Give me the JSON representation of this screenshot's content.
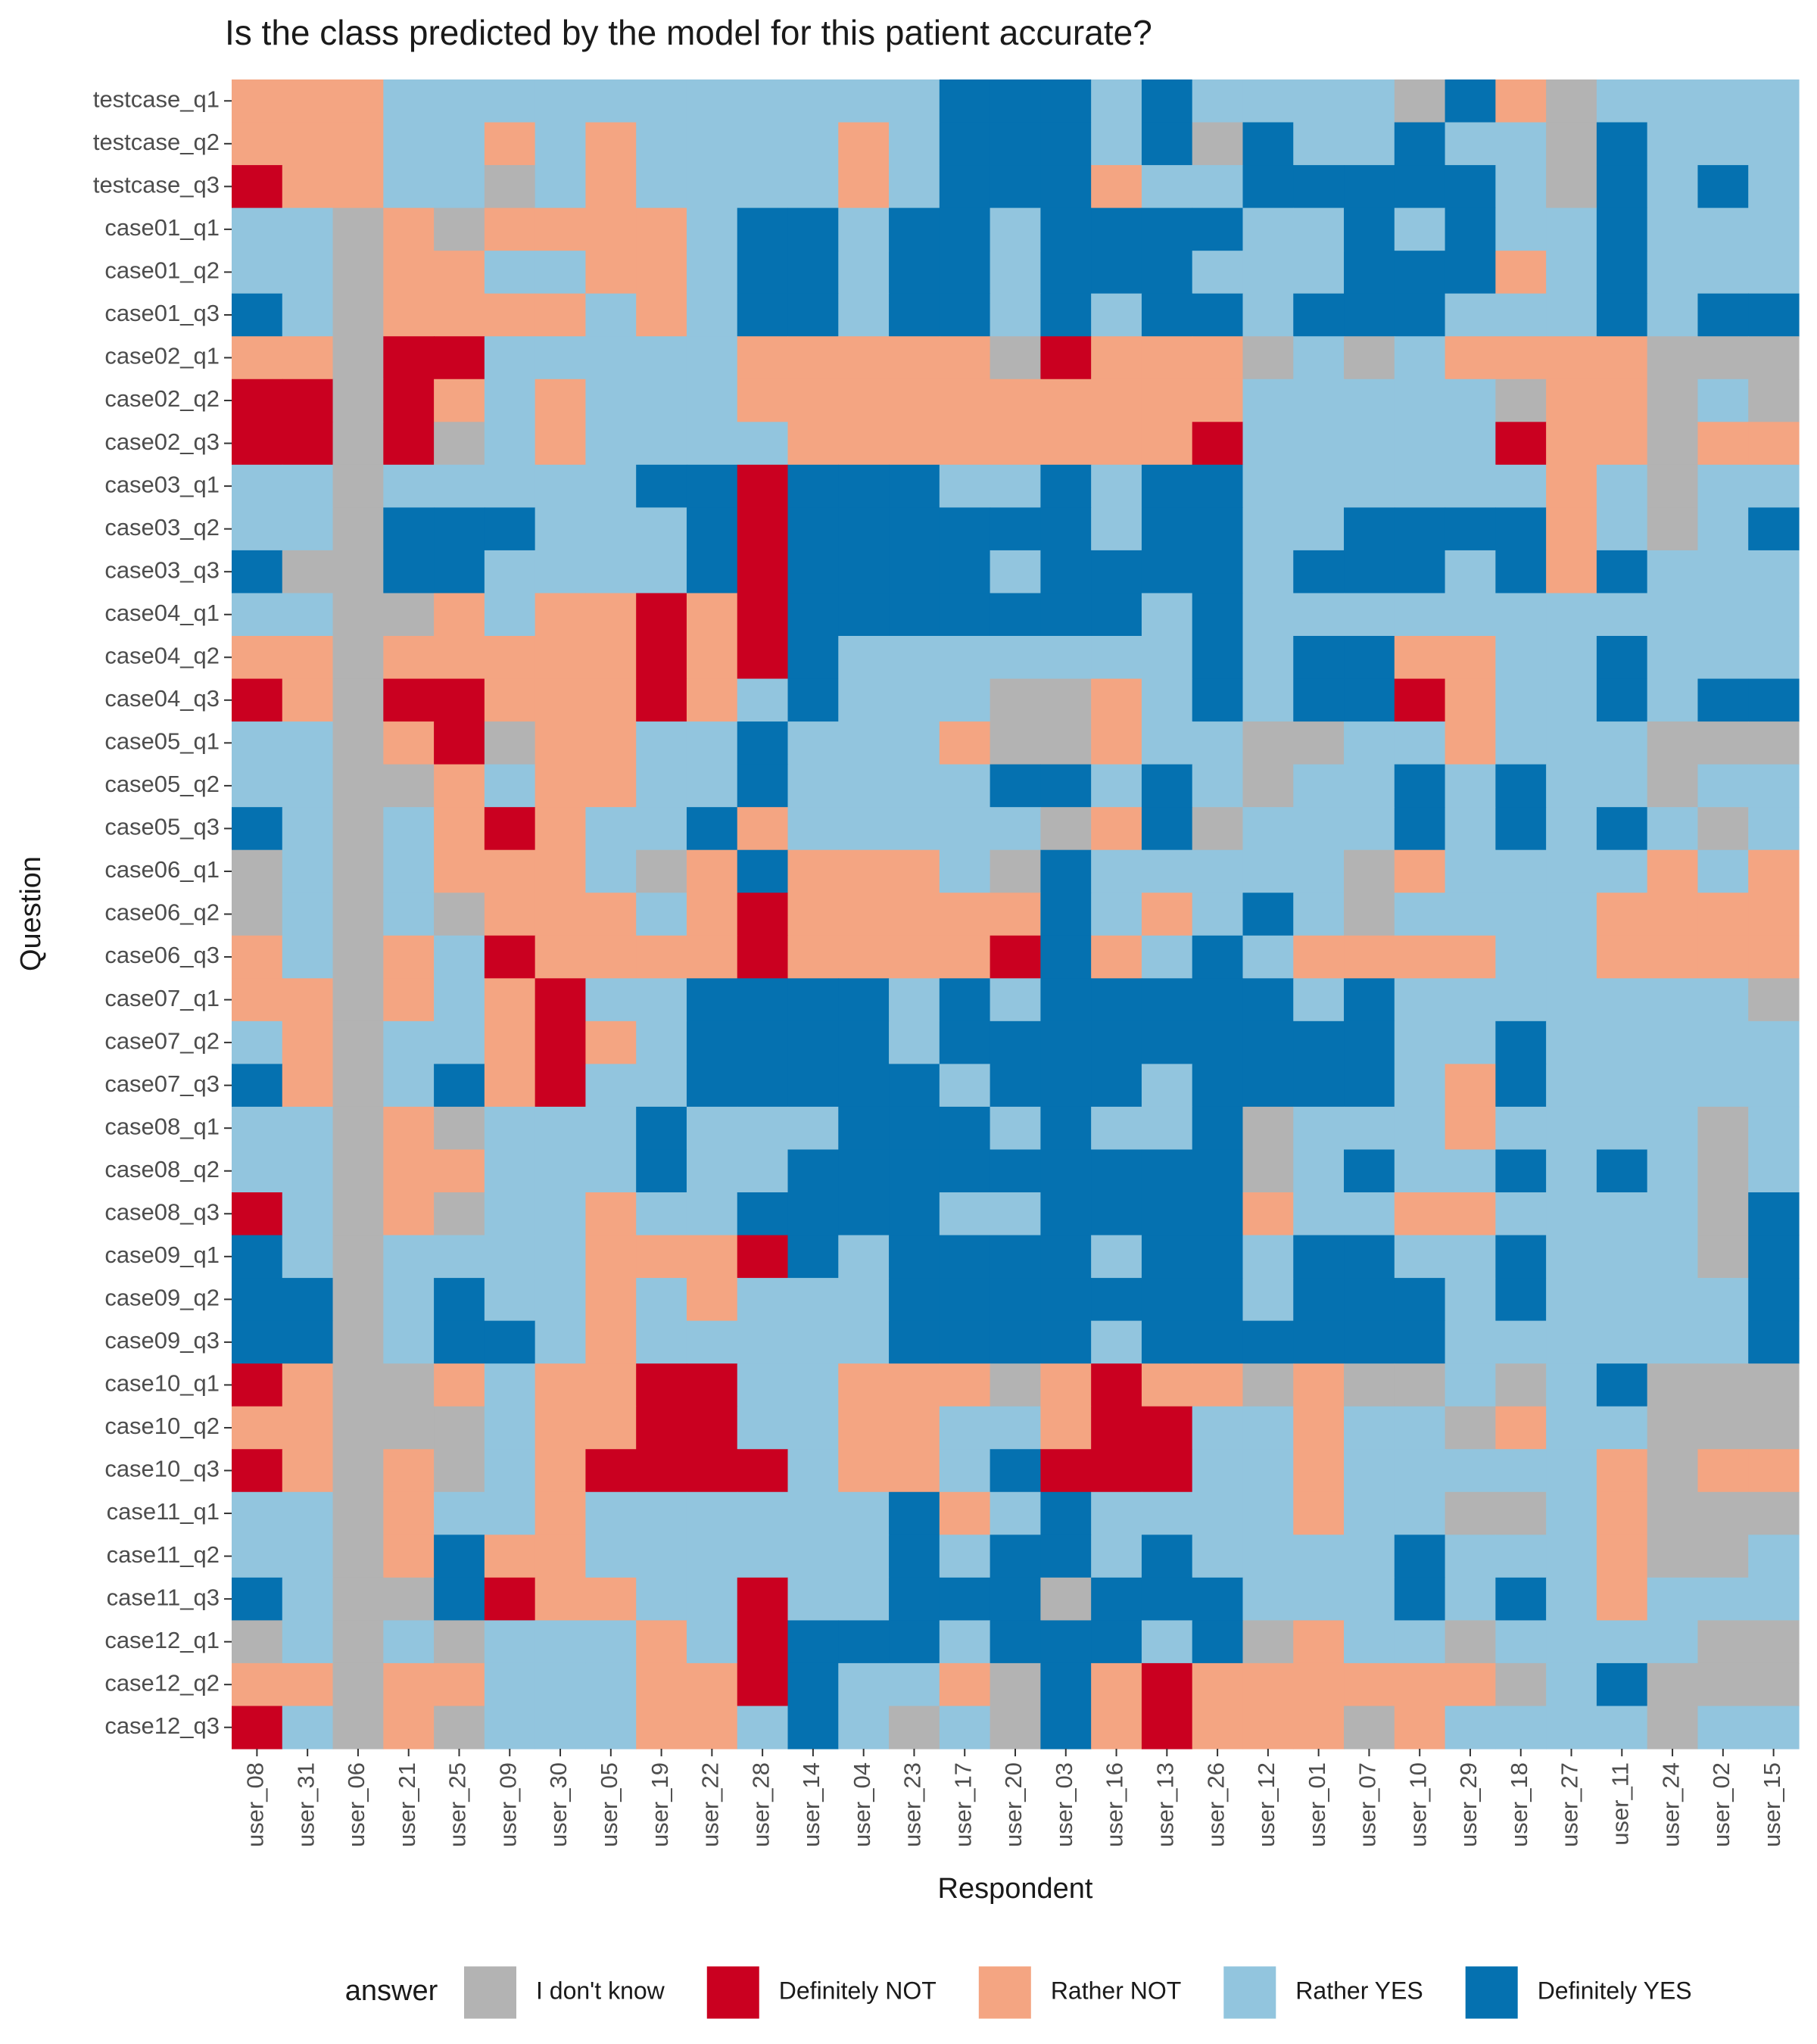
{
  "chart_data": {
    "type": "heatmap",
    "title": "Is the class predicted by the model for this patient accurate?",
    "xlabel": "Respondent",
    "ylabel": "Question",
    "legend_title": "answer",
    "legend_position": "bottom",
    "categories": [
      "I don't know",
      "Definitely NOT",
      "Rather NOT",
      "Rather YES",
      "Definitely YES"
    ],
    "colors": [
      "#b3b3b3",
      "#ca0020",
      "#f4a582",
      "#92c5de",
      "#0571b0"
    ],
    "x": [
      "user_08",
      "user_31",
      "user_06",
      "user_21",
      "user_25",
      "user_09",
      "user_30",
      "user_05",
      "user_19",
      "user_22",
      "user_28",
      "user_14",
      "user_04",
      "user_23",
      "user_17",
      "user_20",
      "user_03",
      "user_16",
      "user_13",
      "user_26",
      "user_12",
      "user_01",
      "user_07",
      "user_10",
      "user_29",
      "user_18",
      "user_27",
      "user_11",
      "user_24",
      "user_02",
      "user_15"
    ],
    "y": [
      "testcase_q1",
      "testcase_q2",
      "testcase_q3",
      "case01_q1",
      "case01_q2",
      "case01_q3",
      "case02_q1",
      "case02_q2",
      "case02_q3",
      "case03_q1",
      "case03_q2",
      "case03_q3",
      "case04_q1",
      "case04_q2",
      "case04_q3",
      "case05_q1",
      "case05_q2",
      "case05_q3",
      "case06_q1",
      "case06_q2",
      "case06_q3",
      "case07_q1",
      "case07_q2",
      "case07_q3",
      "case08_q1",
      "case08_q2",
      "case08_q3",
      "case09_q1",
      "case09_q2",
      "case09_q3",
      "case10_q1",
      "case10_q2",
      "case10_q3",
      "case11_q1",
      "case11_q2",
      "case11_q3",
      "case12_q1",
      "case12_q2",
      "case12_q3"
    ],
    "z": [
      [
        2,
        2,
        2,
        3,
        3,
        3,
        3,
        3,
        3,
        3,
        3,
        3,
        3,
        3,
        4,
        4,
        4,
        3,
        4,
        3,
        3,
        3,
        3,
        0,
        4,
        2,
        0,
        3,
        3,
        3,
        3
      ],
      [
        2,
        2,
        2,
        3,
        3,
        2,
        3,
        2,
        3,
        3,
        3,
        3,
        2,
        3,
        4,
        4,
        4,
        3,
        4,
        0,
        4,
        3,
        3,
        4,
        3,
        3,
        0,
        4,
        3,
        3,
        3
      ],
      [
        1,
        2,
        2,
        3,
        3,
        0,
        3,
        2,
        3,
        3,
        3,
        3,
        2,
        3,
        4,
        4,
        4,
        2,
        3,
        3,
        4,
        4,
        4,
        4,
        4,
        3,
        0,
        4,
        3,
        4,
        3
      ],
      [
        3,
        3,
        0,
        2,
        0,
        2,
        2,
        2,
        2,
        3,
        4,
        4,
        3,
        4,
        4,
        3,
        4,
        4,
        4,
        4,
        3,
        3,
        4,
        3,
        4,
        3,
        3,
        4,
        3,
        3,
        3
      ],
      [
        3,
        3,
        0,
        2,
        2,
        3,
        3,
        2,
        2,
        3,
        4,
        4,
        3,
        4,
        4,
        3,
        4,
        4,
        4,
        3,
        3,
        3,
        4,
        4,
        4,
        2,
        3,
        4,
        3,
        3,
        3
      ],
      [
        4,
        3,
        0,
        2,
        2,
        2,
        2,
        3,
        2,
        3,
        4,
        4,
        3,
        4,
        4,
        3,
        4,
        3,
        4,
        4,
        3,
        4,
        4,
        4,
        3,
        3,
        3,
        4,
        3,
        4,
        4
      ],
      [
        2,
        2,
        0,
        1,
        1,
        3,
        3,
        3,
        3,
        3,
        2,
        2,
        2,
        2,
        2,
        0,
        1,
        2,
        2,
        2,
        0,
        3,
        0,
        3,
        2,
        2,
        2,
        2,
        0,
        0,
        0
      ],
      [
        1,
        1,
        0,
        1,
        2,
        3,
        2,
        3,
        3,
        3,
        2,
        2,
        2,
        2,
        2,
        2,
        2,
        2,
        2,
        2,
        3,
        3,
        3,
        3,
        3,
        0,
        2,
        2,
        0,
        3,
        0
      ],
      [
        1,
        1,
        0,
        1,
        0,
        3,
        2,
        3,
        3,
        3,
        3,
        2,
        2,
        2,
        2,
        2,
        2,
        2,
        2,
        1,
        3,
        3,
        3,
        3,
        3,
        1,
        2,
        2,
        0,
        2,
        2
      ],
      [
        3,
        3,
        0,
        3,
        3,
        3,
        3,
        3,
        4,
        4,
        1,
        4,
        4,
        4,
        3,
        3,
        4,
        3,
        4,
        4,
        3,
        3,
        3,
        3,
        3,
        3,
        2,
        3,
        0,
        3,
        3
      ],
      [
        3,
        3,
        0,
        4,
        4,
        4,
        3,
        3,
        3,
        4,
        1,
        4,
        4,
        4,
        4,
        4,
        4,
        3,
        4,
        4,
        3,
        3,
        4,
        4,
        4,
        4,
        2,
        3,
        0,
        3,
        4
      ],
      [
        4,
        0,
        0,
        4,
        4,
        3,
        3,
        3,
        3,
        4,
        1,
        4,
        4,
        4,
        4,
        3,
        4,
        4,
        4,
        4,
        3,
        4,
        4,
        4,
        3,
        4,
        2,
        4,
        3,
        3,
        3
      ],
      [
        3,
        3,
        0,
        0,
        2,
        3,
        2,
        2,
        1,
        2,
        1,
        4,
        4,
        4,
        4,
        4,
        4,
        4,
        3,
        4,
        3,
        3,
        3,
        3,
        3,
        3,
        3,
        3,
        3,
        3,
        3
      ],
      [
        2,
        2,
        0,
        2,
        2,
        2,
        2,
        2,
        1,
        2,
        1,
        4,
        3,
        3,
        3,
        3,
        3,
        3,
        3,
        4,
        3,
        4,
        4,
        2,
        2,
        3,
        3,
        4,
        3,
        3,
        3
      ],
      [
        1,
        2,
        0,
        1,
        1,
        2,
        2,
        2,
        1,
        2,
        3,
        4,
        3,
        3,
        3,
        0,
        0,
        2,
        3,
        4,
        3,
        4,
        4,
        1,
        2,
        3,
        3,
        4,
        3,
        4,
        4
      ],
      [
        3,
        3,
        0,
        2,
        1,
        0,
        2,
        2,
        3,
        3,
        4,
        3,
        3,
        3,
        2,
        0,
        0,
        2,
        3,
        3,
        0,
        0,
        3,
        3,
        2,
        3,
        3,
        3,
        0,
        0,
        0
      ],
      [
        3,
        3,
        0,
        0,
        2,
        3,
        2,
        2,
        3,
        3,
        4,
        3,
        3,
        3,
        3,
        4,
        4,
        3,
        4,
        3,
        0,
        3,
        3,
        4,
        3,
        4,
        3,
        3,
        0,
        3,
        3
      ],
      [
        4,
        3,
        0,
        3,
        2,
        1,
        2,
        3,
        3,
        4,
        2,
        3,
        3,
        3,
        3,
        3,
        0,
        2,
        4,
        0,
        3,
        3,
        3,
        4,
        3,
        4,
        3,
        4,
        3,
        0,
        3
      ],
      [
        0,
        3,
        0,
        3,
        2,
        2,
        2,
        3,
        0,
        2,
        4,
        2,
        2,
        2,
        3,
        0,
        4,
        3,
        3,
        3,
        3,
        3,
        0,
        2,
        3,
        3,
        3,
        3,
        2,
        3,
        2
      ],
      [
        0,
        3,
        0,
        3,
        0,
        2,
        2,
        2,
        3,
        2,
        1,
        2,
        2,
        2,
        2,
        2,
        4,
        3,
        2,
        3,
        4,
        3,
        0,
        3,
        3,
        3,
        3,
        2,
        2,
        2,
        2
      ],
      [
        2,
        3,
        0,
        2,
        3,
        1,
        2,
        2,
        2,
        2,
        1,
        2,
        2,
        2,
        2,
        1,
        4,
        2,
        3,
        4,
        3,
        2,
        2,
        2,
        2,
        3,
        3,
        2,
        2,
        2,
        2
      ],
      [
        2,
        2,
        0,
        2,
        3,
        2,
        1,
        3,
        3,
        4,
        4,
        4,
        4,
        3,
        4,
        3,
        4,
        4,
        4,
        4,
        4,
        3,
        4,
        3,
        3,
        3,
        3,
        3,
        3,
        3,
        0
      ],
      [
        3,
        2,
        0,
        3,
        3,
        2,
        1,
        2,
        3,
        4,
        4,
        4,
        4,
        3,
        4,
        4,
        4,
        4,
        4,
        4,
        4,
        4,
        4,
        3,
        3,
        4,
        3,
        3,
        3,
        3,
        3
      ],
      [
        4,
        2,
        0,
        3,
        4,
        2,
        1,
        3,
        3,
        4,
        4,
        4,
        4,
        4,
        3,
        4,
        4,
        4,
        3,
        4,
        4,
        4,
        4,
        3,
        2,
        4,
        3,
        3,
        3,
        3,
        3
      ],
      [
        3,
        3,
        0,
        2,
        0,
        3,
        3,
        3,
        4,
        3,
        3,
        3,
        4,
        4,
        4,
        3,
        4,
        3,
        3,
        4,
        0,
        3,
        3,
        3,
        2,
        3,
        3,
        3,
        3,
        0,
        3
      ],
      [
        3,
        3,
        0,
        2,
        2,
        3,
        3,
        3,
        4,
        3,
        3,
        4,
        4,
        4,
        4,
        4,
        4,
        4,
        4,
        4,
        0,
        3,
        4,
        3,
        3,
        4,
        3,
        4,
        3,
        0,
        3
      ],
      [
        1,
        3,
        0,
        2,
        0,
        3,
        3,
        2,
        3,
        3,
        4,
        4,
        4,
        4,
        3,
        3,
        4,
        4,
        4,
        4,
        2,
        3,
        3,
        2,
        2,
        3,
        3,
        3,
        3,
        0,
        4
      ],
      [
        4,
        3,
        0,
        3,
        3,
        3,
        3,
        2,
        2,
        2,
        1,
        4,
        3,
        4,
        4,
        4,
        4,
        3,
        4,
        4,
        3,
        4,
        4,
        3,
        3,
        4,
        3,
        3,
        3,
        0,
        4
      ],
      [
        4,
        4,
        0,
        3,
        4,
        3,
        3,
        2,
        3,
        2,
        3,
        3,
        3,
        4,
        4,
        4,
        4,
        4,
        4,
        4,
        3,
        4,
        4,
        4,
        3,
        4,
        3,
        3,
        3,
        3,
        4
      ],
      [
        4,
        4,
        0,
        3,
        4,
        4,
        3,
        2,
        3,
        3,
        3,
        3,
        3,
        4,
        4,
        4,
        4,
        3,
        4,
        4,
        4,
        4,
        4,
        4,
        3,
        3,
        3,
        3,
        3,
        3,
        4
      ],
      [
        1,
        2,
        0,
        0,
        2,
        3,
        2,
        2,
        1,
        1,
        3,
        3,
        2,
        2,
        2,
        0,
        2,
        1,
        2,
        2,
        0,
        2,
        0,
        0,
        3,
        0,
        3,
        4,
        0,
        0,
        0
      ],
      [
        2,
        2,
        0,
        0,
        0,
        3,
        2,
        2,
        1,
        1,
        3,
        3,
        2,
        2,
        3,
        3,
        2,
        1,
        1,
        3,
        3,
        2,
        3,
        3,
        0,
        2,
        3,
        3,
        0,
        0,
        0
      ],
      [
        1,
        2,
        0,
        2,
        0,
        3,
        2,
        1,
        1,
        1,
        1,
        3,
        2,
        2,
        3,
        4,
        1,
        1,
        1,
        3,
        3,
        2,
        3,
        3,
        3,
        3,
        3,
        2,
        0,
        2,
        2
      ],
      [
        3,
        3,
        0,
        2,
        3,
        3,
        2,
        3,
        3,
        3,
        3,
        3,
        3,
        4,
        2,
        3,
        4,
        3,
        3,
        3,
        3,
        2,
        3,
        3,
        0,
        0,
        3,
        2,
        0,
        0,
        0
      ],
      [
        3,
        3,
        0,
        2,
        4,
        2,
        2,
        3,
        3,
        3,
        3,
        3,
        3,
        4,
        3,
        4,
        4,
        3,
        4,
        3,
        3,
        3,
        3,
        4,
        3,
        3,
        3,
        2,
        0,
        0,
        3
      ],
      [
        4,
        3,
        0,
        0,
        4,
        1,
        2,
        2,
        3,
        3,
        1,
        3,
        3,
        4,
        4,
        4,
        0,
        4,
        4,
        4,
        3,
        3,
        3,
        4,
        3,
        4,
        3,
        2,
        3,
        3,
        3
      ],
      [
        0,
        3,
        0,
        3,
        0,
        3,
        3,
        3,
        2,
        3,
        1,
        4,
        4,
        4,
        3,
        4,
        4,
        4,
        3,
        4,
        0,
        2,
        3,
        3,
        0,
        3,
        3,
        3,
        3,
        0,
        0
      ],
      [
        2,
        2,
        0,
        2,
        2,
        3,
        3,
        3,
        2,
        2,
        1,
        4,
        3,
        3,
        2,
        0,
        4,
        2,
        1,
        2,
        2,
        2,
        2,
        2,
        2,
        0,
        3,
        4,
        0,
        0,
        0
      ],
      [
        1,
        3,
        0,
        2,
        0,
        3,
        3,
        3,
        2,
        2,
        3,
        4,
        3,
        0,
        3,
        0,
        4,
        2,
        1,
        2,
        2,
        2,
        0,
        2,
        3,
        3,
        3,
        3,
        0,
        3,
        3
      ]
    ]
  }
}
